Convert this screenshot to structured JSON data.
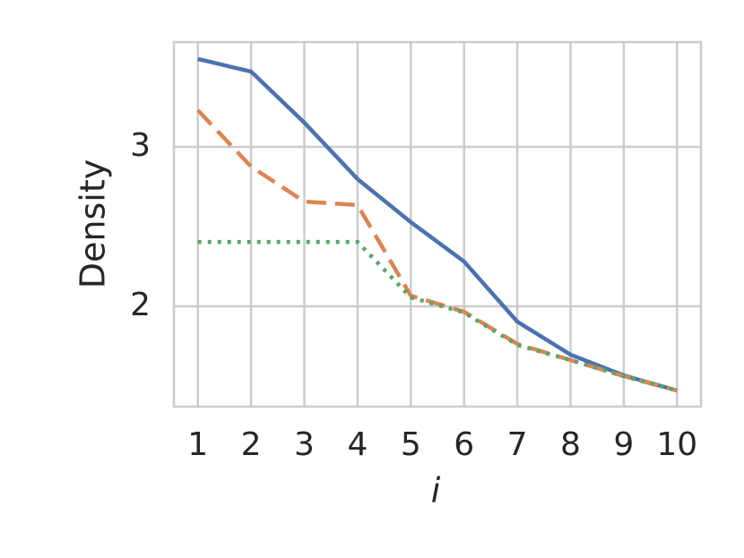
{
  "chart_data": {
    "type": "line",
    "x_label": "i",
    "y_label": "Density",
    "x": [
      1,
      2,
      3,
      4,
      5,
      6,
      7,
      8,
      9,
      10
    ],
    "series": [
      {
        "color": "#4c72b0",
        "style": "solid",
        "values": [
          3.551,
          3.472,
          3.152,
          2.798,
          2.528,
          2.281,
          1.904,
          1.697,
          1.567,
          1.472
        ]
      },
      {
        "color": "#dd8452",
        "style": "dashed",
        "values": [
          3.23,
          2.876,
          2.657,
          2.635,
          2.067,
          1.966,
          1.764,
          1.663,
          1.562,
          1.472
        ]
      },
      {
        "color": "#55a868",
        "style": "dotted",
        "values": [
          2.404,
          2.404,
          2.404,
          2.404,
          2.056,
          1.961,
          1.758,
          1.663,
          1.562,
          1.472
        ]
      }
    ],
    "xlim": [
      0.55,
      10.45
    ],
    "ylim": [
      1.371,
      3.657
    ],
    "xticks": [
      1,
      2,
      3,
      4,
      5,
      6,
      7,
      8,
      9,
      10
    ],
    "yticks": [
      2,
      3
    ],
    "grid": true
  }
}
